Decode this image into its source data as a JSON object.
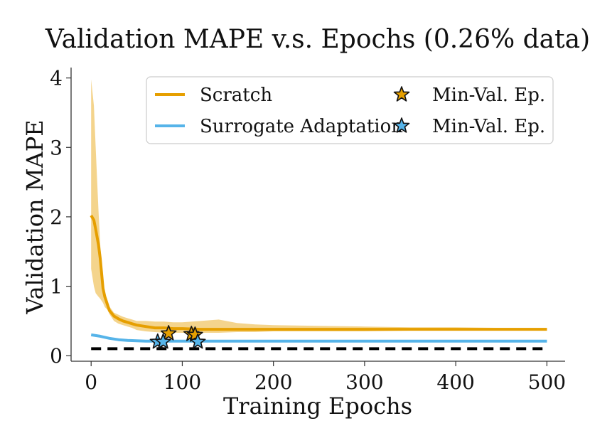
{
  "chart_data": {
    "type": "line",
    "title": "Validation MAPE v.s. Epochs (0.26% data)",
    "xlabel": "Training Epochs",
    "ylabel": "Validation MAPE",
    "xlim": [
      -22,
      520
    ],
    "ylim": [
      -0.08,
      4.15
    ],
    "x_ticks": [
      0,
      100,
      200,
      300,
      400,
      500
    ],
    "x_tick_labels": [
      "0",
      "100",
      "200",
      "300",
      "400",
      "500"
    ],
    "y_ticks": [
      0,
      1,
      2,
      3,
      4
    ],
    "y_tick_labels": [
      "0",
      "1",
      "2",
      "3",
      "4"
    ],
    "grid": false,
    "legend_position": "top-right",
    "legend": [
      {
        "label": "Scratch",
        "kind": "line",
        "color": "#E69F00"
      },
      {
        "label": "Min-Val. Ep.",
        "kind": "star",
        "color": "#E69F00"
      },
      {
        "label": "Surrogate Adaptation",
        "kind": "line",
        "color": "#56B4E9"
      },
      {
        "label": "Min-Val. Ep.",
        "kind": "star",
        "color": "#56B4E9"
      }
    ],
    "series": [
      {
        "name": "Scratch",
        "color": "#E69F00",
        "x": [
          0,
          3,
          5,
          8,
          10,
          13,
          15,
          18,
          20,
          25,
          30,
          35,
          40,
          45,
          50,
          60,
          70,
          80,
          90,
          100,
          120,
          140,
          160,
          180,
          200,
          250,
          300,
          350,
          400,
          450,
          500
        ],
        "mean": [
          2.02,
          1.95,
          1.82,
          1.6,
          1.4,
          0.97,
          0.85,
          0.73,
          0.65,
          0.57,
          0.53,
          0.5,
          0.48,
          0.46,
          0.44,
          0.42,
          0.4,
          0.4,
          0.39,
          0.39,
          0.38,
          0.38,
          0.38,
          0.38,
          0.38,
          0.38,
          0.38,
          0.38,
          0.38,
          0.38,
          0.38
        ],
        "upper": [
          3.98,
          3.6,
          3.0,
          2.1,
          1.6,
          1.1,
          0.92,
          0.8,
          0.71,
          0.62,
          0.59,
          0.56,
          0.54,
          0.52,
          0.5,
          0.5,
          0.49,
          0.49,
          0.48,
          0.48,
          0.5,
          0.52,
          0.47,
          0.45,
          0.44,
          0.43,
          0.42,
          0.41,
          0.41,
          0.4,
          0.4
        ],
        "lower": [
          1.25,
          1.0,
          0.9,
          0.85,
          0.82,
          0.76,
          0.7,
          0.66,
          0.6,
          0.5,
          0.46,
          0.44,
          0.42,
          0.4,
          0.37,
          0.35,
          0.34,
          0.33,
          0.33,
          0.33,
          0.33,
          0.33,
          0.34,
          0.34,
          0.35,
          0.35,
          0.35,
          0.36,
          0.36,
          0.36,
          0.36
        ],
        "min_val_epochs": [
          {
            "x": 85,
            "y": 0.32
          },
          {
            "x": 110,
            "y": 0.31
          },
          {
            "x": 114,
            "y": 0.3
          }
        ]
      },
      {
        "name": "Surrogate Adaptation",
        "color": "#56B4E9",
        "x": [
          0,
          10,
          20,
          30,
          40,
          50,
          60,
          80,
          100,
          150,
          200,
          300,
          400,
          500
        ],
        "mean": [
          0.3,
          0.28,
          0.25,
          0.23,
          0.22,
          0.215,
          0.21,
          0.21,
          0.21,
          0.21,
          0.21,
          0.21,
          0.21,
          0.21
        ],
        "min_val_epochs": [
          {
            "x": 73,
            "y": 0.2
          },
          {
            "x": 79,
            "y": 0.2
          },
          {
            "x": 117,
            "y": 0.2
          }
        ]
      }
    ],
    "reference_line": {
      "y": 0.1,
      "x_start": 0,
      "x_end": 500,
      "color": "#000000",
      "style": "dashed"
    }
  }
}
